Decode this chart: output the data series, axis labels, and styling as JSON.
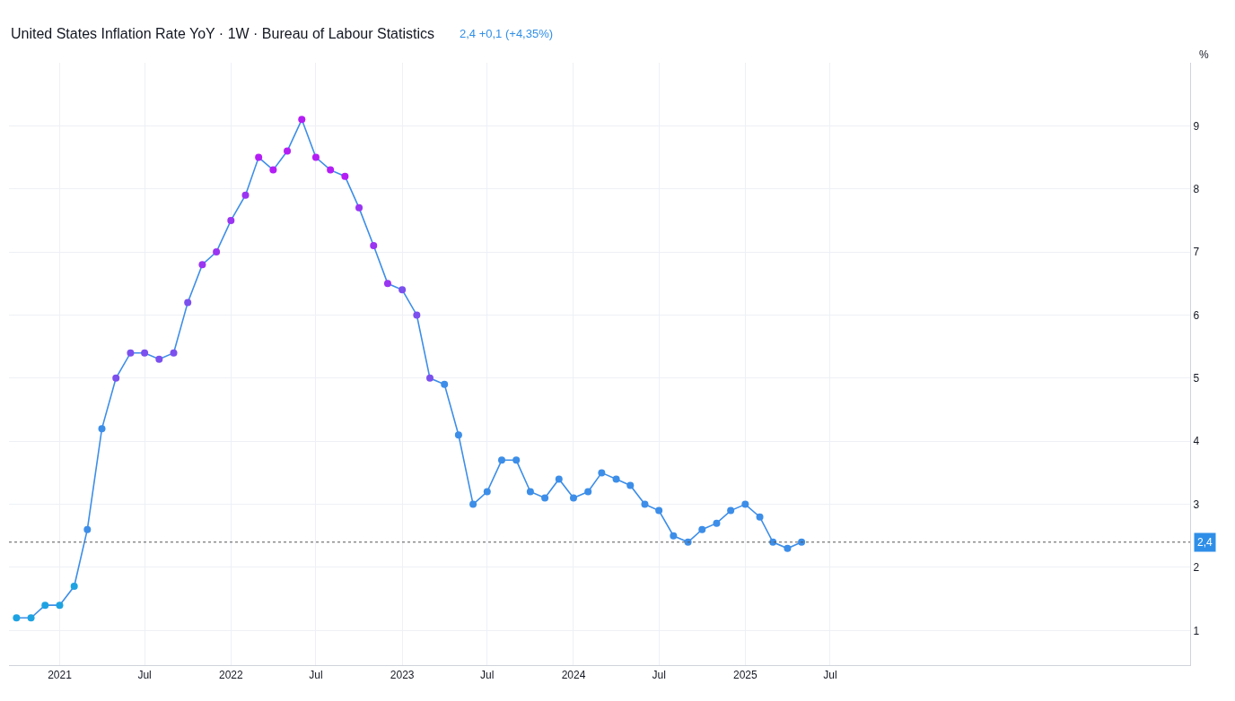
{
  "chart_data": {
    "type": "line",
    "title": "United States Inflation Rate YoY · 1W · Bureau of Labour Statistics",
    "subtitle": "2,4 +0,1 (+4,35%)",
    "ylabel": "%",
    "x": [
      "2020-10",
      "2020-11",
      "2020-12",
      "2021-01",
      "2021-02",
      "2021-03",
      "2021-04",
      "2021-05",
      "2021-06",
      "2021-07",
      "2021-08",
      "2021-09",
      "2021-10",
      "2021-11",
      "2021-12",
      "2022-01",
      "2022-02",
      "2022-03",
      "2022-04",
      "2022-05",
      "2022-06",
      "2022-07",
      "2022-08",
      "2022-09",
      "2022-10",
      "2022-11",
      "2022-12",
      "2023-01",
      "2023-02",
      "2023-03",
      "2023-04",
      "2023-05",
      "2023-06",
      "2023-07",
      "2023-08",
      "2023-09",
      "2023-10",
      "2023-11",
      "2023-12",
      "2024-01",
      "2024-02",
      "2024-03",
      "2024-04",
      "2024-05",
      "2024-06",
      "2024-07",
      "2024-08",
      "2024-09",
      "2024-10",
      "2024-11",
      "2024-12",
      "2025-01",
      "2025-02",
      "2025-03",
      "2025-04",
      "2025-05"
    ],
    "series": [
      {
        "color": "#3d8ee8",
        "marker": "circle",
        "values": [
          1.2,
          1.2,
          1.4,
          1.4,
          1.7,
          2.6,
          4.2,
          5.0,
          5.4,
          5.4,
          5.3,
          5.4,
          6.2,
          6.8,
          7.0,
          7.5,
          7.9,
          8.5,
          8.3,
          8.6,
          9.1,
          8.5,
          8.3,
          8.2,
          7.7,
          7.1,
          6.5,
          6.4,
          6.0,
          5.0,
          4.9,
          4.1,
          3.0,
          3.2,
          3.7,
          3.7,
          3.2,
          3.1,
          3.4,
          3.1,
          3.2,
          3.5,
          3.4,
          3.3,
          3.0,
          2.9,
          2.5,
          2.4,
          2.6,
          2.7,
          2.9,
          3.0,
          2.8,
          2.4,
          2.3,
          2.4
        ],
        "colors": [
          "#1ea3e2",
          "#1ea3e2",
          "#1ea3e2",
          "#1ea3e2",
          "#1ea3e2",
          "#3d8ee8",
          "#3d8ee8",
          "#7b50ee",
          "#7b50ee",
          "#7b50ee",
          "#7b50ee",
          "#7b50ee",
          "#7b50ee",
          "#9a35f2",
          "#9a35f2",
          "#9a35f2",
          "#9a35f2",
          "#b41ef5",
          "#b41ef5",
          "#b41ef5",
          "#b41ef5",
          "#b41ef5",
          "#b41ef5",
          "#b41ef5",
          "#9a35f2",
          "#9a35f2",
          "#9a35f2",
          "#7b50ee",
          "#7b50ee",
          "#7b50ee",
          "#3d8ee8",
          "#3d8ee8",
          "#3d8ee8",
          "#3d8ee8",
          "#3d8ee8",
          "#3d8ee8",
          "#3d8ee8",
          "#3d8ee8",
          "#3d8ee8",
          "#3d8ee8",
          "#3d8ee8",
          "#3d8ee8",
          "#3d8ee8",
          "#3d8ee8",
          "#3d8ee8",
          "#3d8ee8",
          "#3d8ee8",
          "#3d8ee8",
          "#3d8ee8",
          "#3d8ee8",
          "#3d8ee8",
          "#3d8ee8",
          "#3d8ee8",
          "#3d8ee8",
          "#3d8ee8",
          "#3d8ee8"
        ]
      }
    ],
    "xlim": [
      "2020-09-15",
      "2027-08-07"
    ],
    "xticks": [
      {
        "value": "2021-01-01",
        "label": "2021"
      },
      {
        "value": "2021-07-01",
        "label": "Jul"
      },
      {
        "value": "2022-01-01",
        "label": "2022"
      },
      {
        "value": "2022-07-01",
        "label": "Jul"
      },
      {
        "value": "2023-01-01",
        "label": "2023"
      },
      {
        "value": "2023-07-01",
        "label": "Jul"
      },
      {
        "value": "2024-01-01",
        "label": "2024"
      },
      {
        "value": "2024-07-01",
        "label": "Jul"
      },
      {
        "value": "2025-01-01",
        "label": "2025"
      },
      {
        "value": "2025-07-01",
        "label": "Jul"
      }
    ],
    "ylim": [
      0.45,
      10.0
    ],
    "yticks": [
      1,
      2,
      3,
      4,
      5,
      6,
      7,
      8,
      9
    ],
    "ref_lines": [
      {
        "axis": "y",
        "value": 2.4,
        "label": "2,4",
        "color": "#555555",
        "line_style": "dotted"
      }
    ],
    "grid": true
  }
}
